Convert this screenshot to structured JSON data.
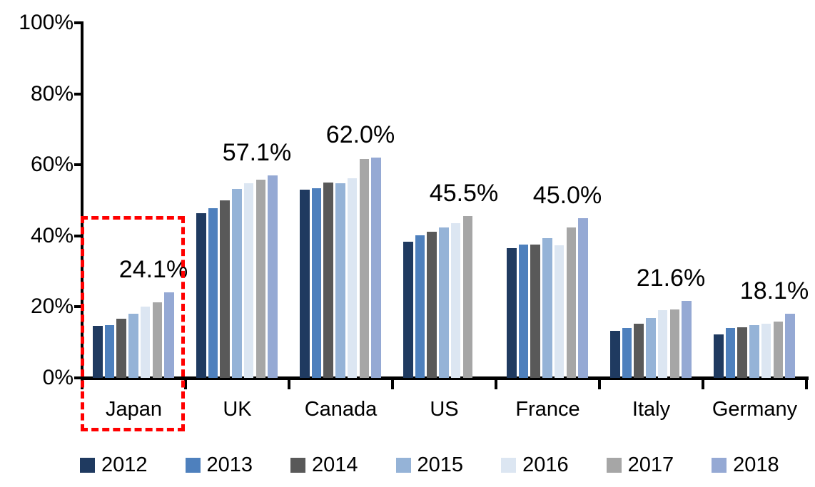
{
  "chart_data": {
    "type": "bar",
    "title": "",
    "xlabel": "",
    "ylabel": "",
    "categories": [
      "Japan",
      "UK",
      "Canada",
      "US",
      "France",
      "Italy",
      "Germany"
    ],
    "series": [
      {
        "name": "2012",
        "color": "#1F3A60",
        "values": [
          14.7,
          46.3,
          53.0,
          38.3,
          36.5,
          13.2,
          12.3
        ]
      },
      {
        "name": "2013",
        "color": "#4E80BD",
        "values": [
          14.9,
          47.8,
          53.5,
          40.2,
          37.6,
          14.0,
          14.0
        ]
      },
      {
        "name": "2014",
        "color": "#595959",
        "values": [
          16.6,
          49.9,
          55.1,
          41.2,
          37.6,
          15.3,
          14.3
        ]
      },
      {
        "name": "2015",
        "color": "#95B3D7",
        "values": [
          18.1,
          53.2,
          54.8,
          42.3,
          39.3,
          16.9,
          14.9
        ]
      },
      {
        "name": "2016",
        "color": "#DCE6F2",
        "values": [
          20.0,
          54.8,
          56.2,
          43.5,
          37.3,
          19.0,
          15.3
        ]
      },
      {
        "name": "2017",
        "color": "#A6A6A6",
        "values": [
          21.2,
          55.8,
          61.6,
          45.5,
          42.3,
          19.2,
          15.9
        ]
      },
      {
        "name": "2018",
        "color": "#95A9D4",
        "values": [
          24.1,
          57.1,
          62.0,
          null,
          45.0,
          21.6,
          18.1
        ]
      }
    ],
    "annotations": [
      {
        "category": "Japan",
        "label": "24.1%"
      },
      {
        "category": "UK",
        "label": "57.1%"
      },
      {
        "category": "Canada",
        "label": "62.0%"
      },
      {
        "category": "US",
        "label": "45.5%"
      },
      {
        "category": "France",
        "label": "45.0%"
      },
      {
        "category": "Italy",
        "label": "21.6%"
      },
      {
        "category": "Germany",
        "label": "18.1%"
      }
    ],
    "y_axis": {
      "min": 0,
      "max": 100,
      "tick_step": 20,
      "tick_labels": [
        "0%",
        "20%",
        "40%",
        "60%",
        "80%",
        "100%"
      ]
    },
    "grid": false,
    "legend": {
      "position": "bottom",
      "entries": [
        "2012",
        "2013",
        "2014",
        "2015",
        "2016",
        "2017",
        "2018"
      ]
    },
    "highlight": {
      "shape": "dashed-rectangle",
      "color": "#FF0000",
      "category": "Japan"
    }
  }
}
